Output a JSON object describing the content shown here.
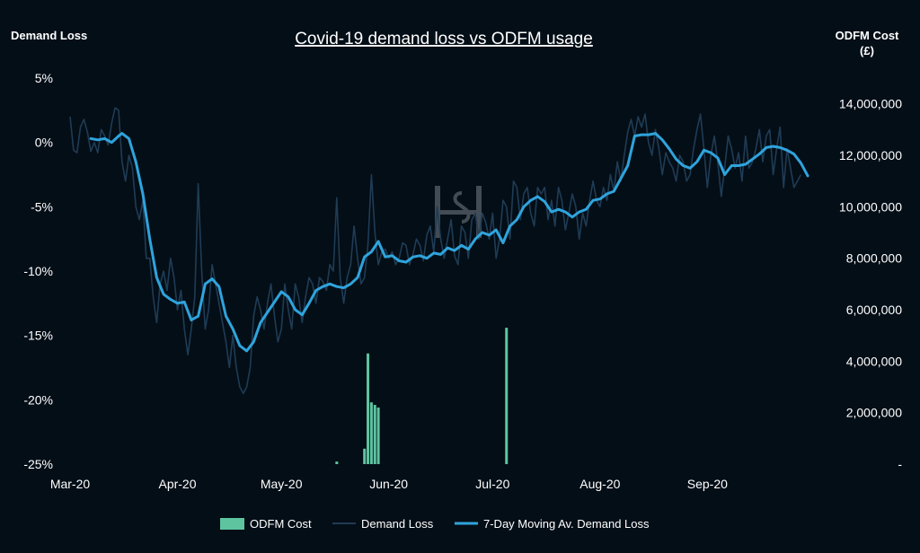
{
  "chart_data": {
    "type": "combo",
    "title": "Covid-19 demand loss vs ODFM usage",
    "ylabel_left": "Demand Loss",
    "ylabel_right_line1": "ODFM Cost",
    "ylabel_right_line2": "(£)",
    "watermark": "logo",
    "left_axis": {
      "ylim": [
        -25,
        5
      ],
      "ticks": [
        5,
        0,
        -5,
        -10,
        -15,
        -20,
        -25
      ],
      "tick_labels": [
        "5%",
        "0%",
        "-5%",
        "-10%",
        "-15%",
        "-20%",
        "-25%"
      ]
    },
    "right_axis": {
      "ylim": [
        0,
        15000000
      ],
      "ticks": [
        14000000,
        12000000,
        10000000,
        8000000,
        6000000,
        4000000,
        2000000,
        0
      ],
      "tick_labels": [
        "14,000,000",
        "12,000,000",
        "10,000,000",
        "8,000,000",
        "6,000,000",
        "4,000,000",
        "2,000,000",
        "-"
      ]
    },
    "x_axis": {
      "ticks": [
        {
          "label": "Mar-20",
          "day": 0
        },
        {
          "label": "Apr-20",
          "day": 31
        },
        {
          "label": "May-20",
          "day": 61
        },
        {
          "label": "Jun-20",
          "day": 92
        },
        {
          "label": "Jul-20",
          "day": 122
        },
        {
          "label": "Aug-20",
          "day": 153
        },
        {
          "label": "Sep-20",
          "day": 184
        }
      ],
      "range": [
        0,
        214
      ]
    },
    "colors": {
      "odfm": "#5ec4a0",
      "demand": "#1f3c55",
      "moving_avg": "#2fa4dc"
    },
    "legend": [
      {
        "label": "ODFM Cost",
        "key": "odfm"
      },
      {
        "label": "Demand Loss",
        "key": "demand"
      },
      {
        "label": "7-Day Moving Av. Demand Loss",
        "key": "moving_avg"
      }
    ],
    "odfm_cost": [
      {
        "day": 77,
        "value": 100000
      },
      {
        "day": 85,
        "value": 600000
      },
      {
        "day": 86,
        "value": 4300000
      },
      {
        "day": 87,
        "value": 2400000
      },
      {
        "day": 88,
        "value": 2300000
      },
      {
        "day": 89,
        "value": 2200000
      },
      {
        "day": 126,
        "value": 5300000
      }
    ],
    "moving_avg": [
      [
        6,
        0.3
      ],
      [
        8,
        0.2
      ],
      [
        10,
        0.3
      ],
      [
        12,
        0.0
      ],
      [
        14,
        0.5
      ],
      [
        15,
        0.7
      ],
      [
        17,
        0.3
      ],
      [
        19,
        -1.5
      ],
      [
        21,
        -4
      ],
      [
        23,
        -7.5
      ],
      [
        25,
        -10.5
      ],
      [
        27,
        -11.8
      ],
      [
        29,
        -12.2
      ],
      [
        31,
        -12.5
      ],
      [
        33,
        -12.4
      ],
      [
        35,
        -13.8
      ],
      [
        37,
        -13.5
      ],
      [
        39,
        -11.0
      ],
      [
        41,
        -10.6
      ],
      [
        43,
        -11.2
      ],
      [
        45,
        -13.5
      ],
      [
        47,
        -14.5
      ],
      [
        49,
        -15.8
      ],
      [
        51,
        -16.2
      ],
      [
        53,
        -15.5
      ],
      [
        55,
        -14.0
      ],
      [
        57,
        -13.2
      ],
      [
        59,
        -12.4
      ],
      [
        61,
        -11.6
      ],
      [
        63,
        -12.0
      ],
      [
        65,
        -13.0
      ],
      [
        67,
        -13.4
      ],
      [
        69,
        -12.5
      ],
      [
        71,
        -11.5
      ],
      [
        73,
        -11.2
      ],
      [
        75,
        -11.0
      ],
      [
        77,
        -11.2
      ],
      [
        79,
        -11.3
      ],
      [
        81,
        -11.0
      ],
      [
        83,
        -10.5
      ],
      [
        85,
        -8.9
      ],
      [
        87,
        -8.5
      ],
      [
        89,
        -7.7
      ],
      [
        91,
        -8.9
      ],
      [
        93,
        -8.8
      ],
      [
        95,
        -9.2
      ],
      [
        97,
        -9.3
      ],
      [
        99,
        -8.9
      ],
      [
        101,
        -8.8
      ],
      [
        103,
        -9.0
      ],
      [
        105,
        -8.6
      ],
      [
        107,
        -8.7
      ],
      [
        109,
        -8.2
      ],
      [
        111,
        -8.4
      ],
      [
        113,
        -8.0
      ],
      [
        115,
        -8.3
      ],
      [
        117,
        -7.5
      ],
      [
        119,
        -7.0
      ],
      [
        121,
        -7.2
      ],
      [
        123,
        -6.8
      ],
      [
        125,
        -7.8
      ],
      [
        127,
        -6.5
      ],
      [
        129,
        -6.0
      ],
      [
        131,
        -5.0
      ],
      [
        133,
        -4.5
      ],
      [
        135,
        -4.2
      ],
      [
        137,
        -4.6
      ],
      [
        139,
        -5.4
      ],
      [
        141,
        -5.2
      ],
      [
        143,
        -5.4
      ],
      [
        145,
        -5.8
      ],
      [
        147,
        -5.4
      ],
      [
        149,
        -5.2
      ],
      [
        151,
        -4.5
      ],
      [
        153,
        -4.4
      ],
      [
        155,
        -4.0
      ],
      [
        157,
        -3.8
      ],
      [
        159,
        -2.8
      ],
      [
        161,
        -1.8
      ],
      [
        163,
        0.5
      ],
      [
        165,
        0.6
      ],
      [
        167,
        0.6
      ],
      [
        169,
        0.7
      ],
      [
        171,
        0.2
      ],
      [
        173,
        -0.5
      ],
      [
        175,
        -1.3
      ],
      [
        177,
        -1.8
      ],
      [
        179,
        -2.0
      ],
      [
        181,
        -1.5
      ],
      [
        183,
        -0.6
      ],
      [
        185,
        -0.8
      ],
      [
        187,
        -1.2
      ],
      [
        189,
        -2.5
      ],
      [
        191,
        -1.8
      ],
      [
        193,
        -1.8
      ],
      [
        195,
        -1.7
      ],
      [
        197,
        -1.3
      ],
      [
        199,
        -0.9
      ],
      [
        201,
        -0.4
      ],
      [
        203,
        -0.3
      ],
      [
        205,
        -0.4
      ],
      [
        207,
        -0.6
      ],
      [
        209,
        -0.9
      ],
      [
        211,
        -1.6
      ],
      [
        213,
        -2.6
      ]
    ],
    "demand_loss": [
      [
        0,
        2.0
      ],
      [
        1,
        -0.6
      ],
      [
        2,
        -0.8
      ],
      [
        3,
        1.2
      ],
      [
        4,
        1.8
      ],
      [
        5,
        0.8
      ],
      [
        6,
        -0.7
      ],
      [
        7,
        0.0
      ],
      [
        8,
        -0.8
      ],
      [
        9,
        1.0
      ],
      [
        10,
        0.5
      ],
      [
        11,
        -0.2
      ],
      [
        12,
        1.5
      ],
      [
        13,
        2.7
      ],
      [
        14,
        2.5
      ],
      [
        15,
        -1.5
      ],
      [
        16,
        -3.0
      ],
      [
        17,
        -1.0
      ],
      [
        18,
        -2.0
      ],
      [
        19,
        -5.0
      ],
      [
        20,
        -6.0
      ],
      [
        21,
        -4.5
      ],
      [
        22,
        -9.0
      ],
      [
        23,
        -9.0
      ],
      [
        24,
        -12.0
      ],
      [
        25,
        -14.0
      ],
      [
        26,
        -11.0
      ],
      [
        27,
        -10.0
      ],
      [
        28,
        -11.5
      ],
      [
        29,
        -9.0
      ],
      [
        30,
        -10.5
      ],
      [
        31,
        -13.0
      ],
      [
        32,
        -11.5
      ],
      [
        33,
        -14.5
      ],
      [
        34,
        -16.5
      ],
      [
        35,
        -14.5
      ],
      [
        36,
        -12.0
      ],
      [
        37,
        -3.2
      ],
      [
        38,
        -10.0
      ],
      [
        39,
        -14.5
      ],
      [
        40,
        -13.0
      ],
      [
        41,
        -9.5
      ],
      [
        42,
        -11.0
      ],
      [
        43,
        -12.5
      ],
      [
        44,
        -14.0
      ],
      [
        45,
        -15.5
      ],
      [
        46,
        -17.5
      ],
      [
        47,
        -15.0
      ],
      [
        48,
        -17.5
      ],
      [
        49,
        -19.0
      ],
      [
        50,
        -19.5
      ],
      [
        51,
        -19.0
      ],
      [
        52,
        -17.5
      ],
      [
        53,
        -13.5
      ],
      [
        54,
        -12.0
      ],
      [
        55,
        -13.0
      ],
      [
        56,
        -14.5
      ],
      [
        57,
        -12.5
      ],
      [
        58,
        -11.0
      ],
      [
        59,
        -13.5
      ],
      [
        60,
        -15.5
      ],
      [
        61,
        -14.5
      ],
      [
        62,
        -11.0
      ],
      [
        63,
        -13.0
      ],
      [
        64,
        -14.5
      ],
      [
        65,
        -11.0
      ],
      [
        66,
        -12.0
      ],
      [
        67,
        -14.0
      ],
      [
        68,
        -12.0
      ],
      [
        69,
        -10.5
      ],
      [
        70,
        -11.0
      ],
      [
        71,
        -12.5
      ],
      [
        72,
        -10.5
      ],
      [
        73,
        -10.8
      ],
      [
        74,
        -11.5
      ],
      [
        75,
        -9.5
      ],
      [
        76,
        -10.0
      ],
      [
        77,
        -4.3
      ],
      [
        78,
        -10.5
      ],
      [
        79,
        -12.5
      ],
      [
        80,
        -10.5
      ],
      [
        81,
        -9.5
      ],
      [
        82,
        -6.5
      ],
      [
        83,
        -9.0
      ],
      [
        84,
        -11.0
      ],
      [
        85,
        -10.5
      ],
      [
        86,
        -8.0
      ],
      [
        87,
        -2.5
      ],
      [
        88,
        -7.0
      ],
      [
        89,
        -9.5
      ],
      [
        90,
        -8.5
      ],
      [
        91,
        -8.3
      ],
      [
        92,
        -9.0
      ],
      [
        93,
        -8.5
      ],
      [
        94,
        -9.5
      ],
      [
        95,
        -9.0
      ],
      [
        96,
        -7.8
      ],
      [
        97,
        -8.0
      ],
      [
        98,
        -9.5
      ],
      [
        99,
        -8.7
      ],
      [
        100,
        -7.5
      ],
      [
        101,
        -8.0
      ],
      [
        102,
        -9.2
      ],
      [
        103,
        -7.2
      ],
      [
        104,
        -6.5
      ],
      [
        105,
        -8.5
      ],
      [
        106,
        -5.0
      ],
      [
        107,
        -7.5
      ],
      [
        108,
        -9.0
      ],
      [
        109,
        -7.5
      ],
      [
        110,
        -6.0
      ],
      [
        111,
        -8.8
      ],
      [
        112,
        -9.5
      ],
      [
        113,
        -6.5
      ],
      [
        114,
        -7.0
      ],
      [
        115,
        -9.0
      ],
      [
        116,
        -6.0
      ],
      [
        117,
        -5.5
      ],
      [
        118,
        -7.5
      ],
      [
        119,
        -5.5
      ],
      [
        120,
        -6.2
      ],
      [
        121,
        -7.5
      ],
      [
        122,
        -5.5
      ],
      [
        123,
        -9.0
      ],
      [
        124,
        -7.5
      ],
      [
        125,
        -4.5
      ],
      [
        126,
        -5.0
      ],
      [
        127,
        -7.5
      ],
      [
        128,
        -3.0
      ],
      [
        129,
        -3.5
      ],
      [
        130,
        -6.0
      ],
      [
        131,
        -4.0
      ],
      [
        132,
        -3.5
      ],
      [
        133,
        -5.5
      ],
      [
        134,
        -6.5
      ],
      [
        135,
        -3.5
      ],
      [
        136,
        -4.0
      ],
      [
        137,
        -3.5
      ],
      [
        138,
        -6.0
      ],
      [
        139,
        -4.5
      ],
      [
        140,
        -6.5
      ],
      [
        141,
        -3.5
      ],
      [
        142,
        -4.5
      ],
      [
        143,
        -6.8
      ],
      [
        144,
        -5.5
      ],
      [
        145,
        -4.0
      ],
      [
        146,
        -5.0
      ],
      [
        147,
        -7.5
      ],
      [
        148,
        -5.5
      ],
      [
        149,
        -6.5
      ],
      [
        150,
        -4.5
      ],
      [
        151,
        -3.0
      ],
      [
        152,
        -4.5
      ],
      [
        153,
        -5.0
      ],
      [
        154,
        -3.5
      ],
      [
        155,
        -4.5
      ],
      [
        156,
        -2.5
      ],
      [
        157,
        -3.8
      ],
      [
        158,
        -1.5
      ],
      [
        159,
        -3.0
      ],
      [
        160,
        -1.0
      ],
      [
        161,
        0.8
      ],
      [
        162,
        1.8
      ],
      [
        163,
        0.5
      ],
      [
        164,
        2.0
      ],
      [
        165,
        1.2
      ],
      [
        166,
        2.2
      ],
      [
        167,
        0.0
      ],
      [
        168,
        -1.0
      ],
      [
        169,
        1.0
      ],
      [
        170,
        -0.5
      ],
      [
        171,
        -2.5
      ],
      [
        172,
        -0.8
      ],
      [
        173,
        -1.5
      ],
      [
        174,
        -2.0
      ],
      [
        175,
        -3.0
      ],
      [
        176,
        -1.0
      ],
      [
        177,
        -1.5
      ],
      [
        178,
        -3.0
      ],
      [
        179,
        -2.5
      ],
      [
        180,
        -0.5
      ],
      [
        181,
        1.0
      ],
      [
        182,
        2.2
      ],
      [
        183,
        -0.5
      ],
      [
        184,
        -3.5
      ],
      [
        185,
        -1.0
      ],
      [
        186,
        0.5
      ],
      [
        187,
        -1.5
      ],
      [
        188,
        -4.2
      ],
      [
        189,
        -2.0
      ],
      [
        190,
        0.5
      ],
      [
        191,
        -0.5
      ],
      [
        192,
        -2.0
      ],
      [
        193,
        -0.8
      ],
      [
        194,
        -3.0
      ],
      [
        195,
        0.5
      ],
      [
        196,
        -2.0
      ],
      [
        197,
        -1.5
      ],
      [
        198,
        -0.5
      ],
      [
        199,
        1.0
      ],
      [
        200,
        -1.5
      ],
      [
        201,
        0.5
      ],
      [
        202,
        1.0
      ],
      [
        203,
        -2.5
      ],
      [
        204,
        -0.5
      ],
      [
        205,
        1.2
      ],
      [
        206,
        -3.5
      ],
      [
        207,
        -0.5
      ],
      [
        208,
        -2.0
      ],
      [
        209,
        -3.5
      ],
      [
        210,
        -3.0
      ],
      [
        211,
        -2.5
      ]
    ]
  }
}
